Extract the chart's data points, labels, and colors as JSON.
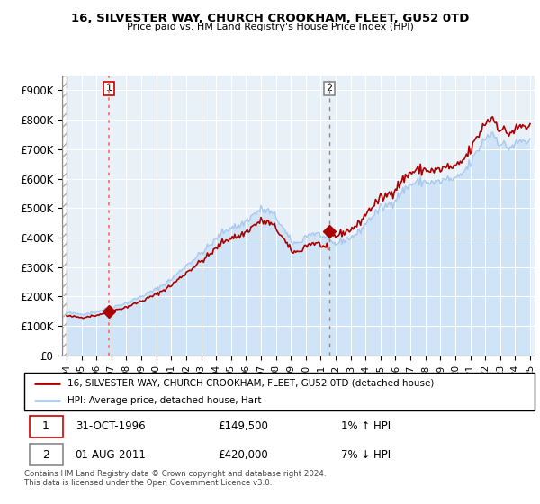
{
  "title1": "16, SILVESTER WAY, CHURCH CROOKHAM, FLEET, GU52 0TD",
  "title2": "Price paid vs. HM Land Registry's House Price Index (HPI)",
  "ylim": [
    0,
    950000
  ],
  "yticks": [
    0,
    100000,
    200000,
    300000,
    400000,
    500000,
    600000,
    700000,
    800000,
    900000
  ],
  "ytick_labels": [
    "£0",
    "£100K",
    "£200K",
    "£300K",
    "£400K",
    "£500K",
    "£600K",
    "£700K",
    "£800K",
    "£900K"
  ],
  "hpi_color": "#aac8ee",
  "hpi_fill_color": "#d0e4f7",
  "price_color": "#aa0000",
  "marker_color": "#aa0000",
  "vline1_color": "#ff6666",
  "vline2_color": "#888888",
  "annotation1_label": "1",
  "annotation1_date": "31-OCT-1996",
  "annotation1_price": "£149,500",
  "annotation1_hpi": "1% ↑ HPI",
  "annotation2_label": "2",
  "annotation2_date": "01-AUG-2011",
  "annotation2_price": "£420,000",
  "annotation2_hpi": "7% ↓ HPI",
  "legend1": "16, SILVESTER WAY, CHURCH CROOKHAM, FLEET, GU52 0TD (detached house)",
  "legend2": "HPI: Average price, detached house, Hart",
  "footnote": "Contains HM Land Registry data © Crown copyright and database right 2024.\nThis data is licensed under the Open Government Licence v3.0.",
  "sale1_x": 1996.833,
  "sale1_y": 149500,
  "sale2_x": 2011.583,
  "sale2_y": 420000,
  "xlim": [
    1993.7,
    2025.3
  ],
  "xticks": [
    1994,
    1995,
    1996,
    1997,
    1998,
    1999,
    2000,
    2001,
    2002,
    2003,
    2004,
    2005,
    2006,
    2007,
    2008,
    2009,
    2010,
    2011,
    2012,
    2013,
    2014,
    2015,
    2016,
    2017,
    2018,
    2019,
    2020,
    2021,
    2022,
    2023,
    2024,
    2025
  ],
  "hatch_end": 1994.0,
  "background_color": "#e8f0f8"
}
